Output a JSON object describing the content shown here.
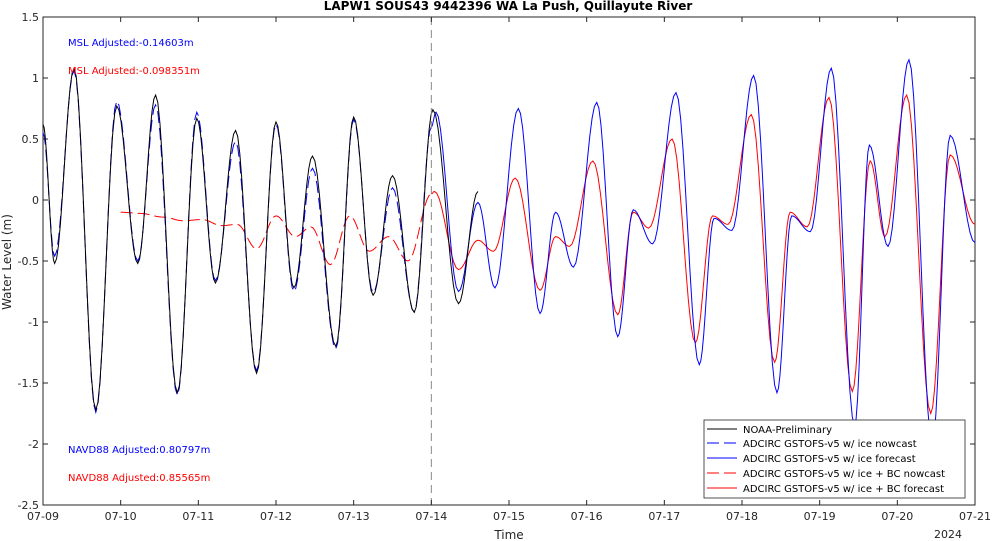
{
  "chart_data": {
    "type": "line",
    "title": "LAPW1 SOUS43 9442396 WA La Push, Quillayute River",
    "xlabel": "Time",
    "ylabel": "Water Level (m)",
    "xlim": [
      "07-09",
      "07-21"
    ],
    "ylim": [
      -2.5,
      1.5
    ],
    "x_ticks": [
      "07-09",
      "07-10",
      "07-11",
      "07-12",
      "07-13",
      "07-14",
      "07-15",
      "07-16",
      "07-17",
      "07-18",
      "07-19",
      "07-20",
      "07-21"
    ],
    "x_tick_year_label": "2024",
    "y_ticks": [
      "1.5",
      "1",
      "0.5",
      "0",
      "-0.5",
      "-1",
      "-1.5",
      "-2",
      "-2.5"
    ],
    "y_tick_values": [
      1.5,
      1,
      0.5,
      0,
      -0.5,
      -1,
      -1.5,
      -2,
      -2.5
    ],
    "nowcast_forecast_divider_day": 5,
    "grid": false,
    "legend_position": "bottom-right",
    "annotations": {
      "msl_blue": "MSL Adjusted:-0.14603m",
      "msl_red": "MSL Adjusted:-0.098351m",
      "navd_blue": "NAVD88 Adjusted:0.80797m",
      "navd_red": "NAVD88 Adjusted:0.85565m"
    },
    "annotation_colors": {
      "blue": "#0000ff",
      "red": "#ff0000"
    },
    "series": [
      {
        "name": "NOAA-Preliminary",
        "color": "#000000",
        "dash": "solid",
        "x_range": [
          0,
          5.6
        ],
        "extrema": [
          [
            0,
            0.62
          ],
          [
            0.15,
            -0.52
          ],
          [
            0.4,
            1.08
          ],
          [
            0.68,
            -1.72
          ],
          [
            0.95,
            0.77
          ],
          [
            1.22,
            -0.52
          ],
          [
            1.45,
            0.86
          ],
          [
            1.73,
            -1.58
          ],
          [
            1.98,
            0.67
          ],
          [
            2.22,
            -0.68
          ],
          [
            2.48,
            0.57
          ],
          [
            2.75,
            -1.42
          ],
          [
            3.0,
            0.64
          ],
          [
            3.23,
            -0.72
          ],
          [
            3.47,
            0.36
          ],
          [
            3.77,
            -1.2
          ],
          [
            4.0,
            0.68
          ],
          [
            4.25,
            -0.78
          ],
          [
            4.5,
            0.2
          ],
          [
            4.78,
            -0.92
          ],
          [
            5.02,
            0.74
          ],
          [
            5.35,
            -0.85
          ],
          [
            5.6,
            0.07
          ]
        ]
      },
      {
        "name": "ADCIRC GSTOFS-v5  w/ ice nowcast",
        "color": "#0000ff",
        "dash": "dashed",
        "x_range": [
          0,
          5.0
        ],
        "extrema": [
          [
            0,
            0.55
          ],
          [
            0.15,
            -0.46
          ],
          [
            0.4,
            1.06
          ],
          [
            0.68,
            -1.74
          ],
          [
            0.95,
            0.81
          ],
          [
            1.22,
            -0.5
          ],
          [
            1.45,
            0.78
          ],
          [
            1.73,
            -1.6
          ],
          [
            1.98,
            0.72
          ],
          [
            2.22,
            -0.66
          ],
          [
            2.48,
            0.48
          ],
          [
            2.75,
            -1.4
          ],
          [
            3.0,
            0.62
          ],
          [
            3.23,
            -0.75
          ],
          [
            3.47,
            0.26
          ],
          [
            3.77,
            -1.22
          ],
          [
            4.0,
            0.66
          ],
          [
            4.25,
            -0.76
          ],
          [
            4.5,
            0.1
          ],
          [
            4.78,
            -0.92
          ],
          [
            5.0,
            0.6
          ]
        ]
      },
      {
        "name": "ADCIRC GSTOFS-v5  w/ ice forecast",
        "color": "#0000ff",
        "dash": "solid",
        "x_range": [
          5.0,
          12.0
        ],
        "extrema": [
          [
            5.0,
            0.6
          ],
          [
            5.06,
            0.72
          ],
          [
            5.35,
            -0.75
          ],
          [
            5.6,
            -0.02
          ],
          [
            5.82,
            -0.72
          ],
          [
            6.12,
            0.75
          ],
          [
            6.4,
            -0.93
          ],
          [
            6.6,
            -0.1
          ],
          [
            6.83,
            -0.55
          ],
          [
            7.13,
            0.8
          ],
          [
            7.4,
            -1.12
          ],
          [
            7.6,
            -0.08
          ],
          [
            7.85,
            -0.36
          ],
          [
            8.15,
            0.88
          ],
          [
            8.45,
            -1.35
          ],
          [
            8.64,
            -0.15
          ],
          [
            8.87,
            -0.25
          ],
          [
            9.15,
            1.02
          ],
          [
            9.45,
            -1.58
          ],
          [
            9.64,
            -0.13
          ],
          [
            9.88,
            -0.26
          ],
          [
            10.15,
            1.08
          ],
          [
            10.45,
            -1.85
          ],
          [
            10.64,
            0.45
          ],
          [
            10.88,
            -0.38
          ],
          [
            11.15,
            1.15
          ],
          [
            11.45,
            -2.0
          ],
          [
            11.68,
            0.53
          ],
          [
            12.0,
            -0.35
          ]
        ]
      },
      {
        "name": "ADCIRC GSTOFS-v5  w/ ice + BC nowcast",
        "color": "#ff0000",
        "dash": "dashed",
        "x_range": [
          1.0,
          5.0
        ],
        "extrema": [
          [
            1.0,
            -0.1
          ],
          [
            1.25,
            -0.11
          ],
          [
            1.55,
            -0.14
          ],
          [
            1.8,
            -0.17
          ],
          [
            2.05,
            -0.16
          ],
          [
            2.3,
            -0.21
          ],
          [
            2.5,
            -0.2
          ],
          [
            2.75,
            -0.4
          ],
          [
            3.0,
            -0.13
          ],
          [
            3.25,
            -0.3
          ],
          [
            3.45,
            -0.22
          ],
          [
            3.7,
            -0.53
          ],
          [
            3.95,
            -0.13
          ],
          [
            4.2,
            -0.42
          ],
          [
            4.45,
            -0.3
          ],
          [
            4.7,
            -0.5
          ],
          [
            5.0,
            0.05
          ]
        ]
      },
      {
        "name": "ADCIRC GSTOFS-v5  w/ ice + BC forecast",
        "color": "#ff0000",
        "dash": "solid",
        "x_range": [
          5.0,
          12.0
        ],
        "extrema": [
          [
            5.0,
            0.05
          ],
          [
            5.04,
            0.07
          ],
          [
            5.35,
            -0.57
          ],
          [
            5.6,
            -0.33
          ],
          [
            5.8,
            -0.42
          ],
          [
            6.08,
            0.18
          ],
          [
            6.4,
            -0.74
          ],
          [
            6.6,
            -0.3
          ],
          [
            6.78,
            -0.38
          ],
          [
            7.08,
            0.32
          ],
          [
            7.4,
            -0.94
          ],
          [
            7.6,
            -0.1
          ],
          [
            7.8,
            -0.23
          ],
          [
            8.1,
            0.5
          ],
          [
            8.4,
            -1.17
          ],
          [
            8.62,
            -0.13
          ],
          [
            8.82,
            -0.2
          ],
          [
            9.12,
            0.7
          ],
          [
            9.42,
            -1.33
          ],
          [
            9.62,
            -0.1
          ],
          [
            9.84,
            -0.22
          ],
          [
            10.12,
            0.84
          ],
          [
            10.42,
            -1.57
          ],
          [
            10.65,
            0.32
          ],
          [
            10.84,
            -0.3
          ],
          [
            11.12,
            0.86
          ],
          [
            11.43,
            -1.75
          ],
          [
            11.68,
            0.37
          ],
          [
            12.0,
            -0.2
          ]
        ]
      }
    ]
  }
}
